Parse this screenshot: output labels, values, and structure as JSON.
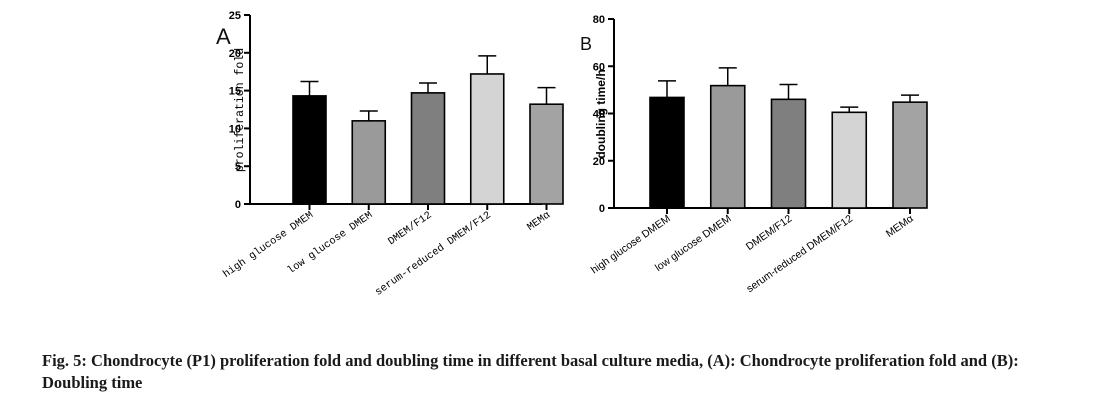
{
  "chart_data": [
    {
      "panel_label": "A",
      "type": "bar",
      "title": "",
      "xlabel": "",
      "ylabel": "proliferation fold",
      "ylim": [
        0,
        25
      ],
      "yticks": [
        "0",
        "5",
        "10",
        "15",
        "20",
        "25"
      ],
      "categories": [
        "high glucose DMEM",
        "low glucose DMEM",
        "DMEM/F12",
        "serum-reduced DMEM/F12",
        "MEMα"
      ],
      "values": [
        14.3,
        11.0,
        14.7,
        17.2,
        13.2
      ],
      "errors": [
        1.9,
        1.3,
        1.3,
        2.4,
        2.2
      ],
      "colors": [
        "#000000",
        "#9a9a9a",
        "#7f7f7f",
        "#d4d4d4",
        "#a3a3a3"
      ],
      "grid": false,
      "legend": "none"
    },
    {
      "panel_label": "B",
      "type": "bar",
      "title": "",
      "xlabel": "",
      "ylabel": "doubling time/h",
      "ylim": [
        0,
        80
      ],
      "yticks": [
        "0",
        "20",
        "40",
        "60",
        "80"
      ],
      "categories": [
        "high glucose DMEM",
        "low glucose DMEM",
        "DMEM/F12",
        "serum-reduced DMEM/F12",
        "MEMα"
      ],
      "values": [
        46.8,
        51.8,
        46.0,
        40.5,
        44.8
      ],
      "errors": [
        7.0,
        7.5,
        6.3,
        2.2,
        3.0
      ],
      "colors": [
        "#000000",
        "#9a9a9a",
        "#7f7f7f",
        "#d4d4d4",
        "#a3a3a3"
      ],
      "grid": false,
      "legend": "none"
    }
  ],
  "caption": "Fig. 5: Chondrocyte (P1) proliferation fold and doubling time in different basal culture media, (A): Chondrocyte proliferation fold and (B): Doubling time"
}
